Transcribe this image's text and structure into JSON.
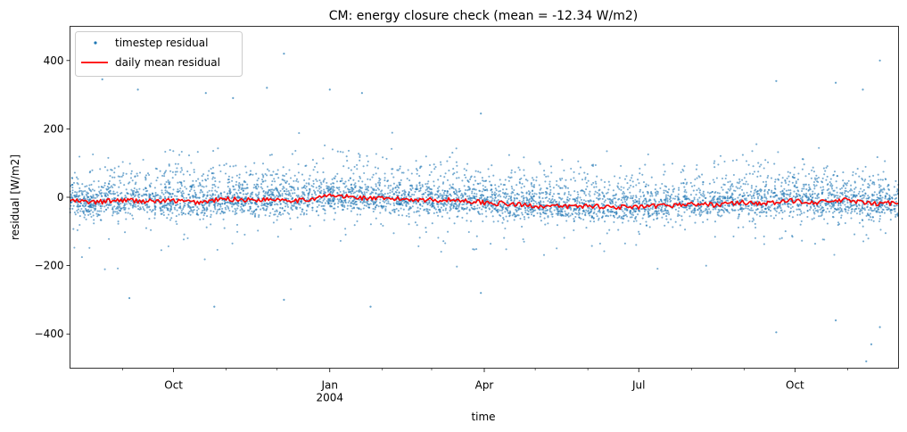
{
  "chart_data": {
    "type": "scatter",
    "title": "CM: energy closure check (mean = -12.34 W/m2)",
    "xlabel": "time",
    "ylabel": "residual [W/m2]",
    "x_range": [
      "2003-08-01",
      "2004-12-01"
    ],
    "ylim": [
      -500,
      500
    ],
    "y_ticks": [
      400,
      200,
      0,
      -200,
      -400
    ],
    "y_tick_labels": [
      "400",
      "200",
      "0",
      "−200",
      "−400"
    ],
    "x_ticks": [
      {
        "date": "2003-10-01",
        "label": "Oct",
        "sublabel": ""
      },
      {
        "date": "2004-01-01",
        "label": "Jan",
        "sublabel": "2004"
      },
      {
        "date": "2004-04-01",
        "label": "Apr",
        "sublabel": ""
      },
      {
        "date": "2004-07-01",
        "label": "Jul",
        "sublabel": ""
      },
      {
        "date": "2004-10-01",
        "label": "Oct",
        "sublabel": ""
      }
    ],
    "x_minor_ticks": [
      "2003-09-01",
      "2003-11-01",
      "2003-12-01",
      "2004-02-01",
      "2004-03-01",
      "2004-05-01",
      "2004-06-01",
      "2004-08-01",
      "2004-09-01",
      "2004-11-01"
    ],
    "grid": false,
    "legend_position": "top-left",
    "series": [
      {
        "name": "timestep residual",
        "kind": "points",
        "color": "#1f77b4",
        "bulk_mean_approx": -30,
        "outliers": [
          {
            "x": "2003-08-20",
            "y": 345
          },
          {
            "x": "2003-09-10",
            "y": 315
          },
          {
            "x": "2003-10-20",
            "y": 305
          },
          {
            "x": "2003-11-05",
            "y": 290
          },
          {
            "x": "2003-12-05",
            "y": 420
          },
          {
            "x": "2003-11-25",
            "y": 320
          },
          {
            "x": "2004-01-01",
            "y": 315
          },
          {
            "x": "2004-01-20",
            "y": 305
          },
          {
            "x": "2004-03-30",
            "y": 245
          },
          {
            "x": "2004-09-20",
            "y": 340
          },
          {
            "x": "2004-10-25",
            "y": 335
          },
          {
            "x": "2004-11-10",
            "y": 315
          },
          {
            "x": "2004-11-20",
            "y": 400
          },
          {
            "x": "2003-09-05",
            "y": -295
          },
          {
            "x": "2003-10-25",
            "y": -320
          },
          {
            "x": "2003-12-05",
            "y": -300
          },
          {
            "x": "2004-01-25",
            "y": -320
          },
          {
            "x": "2004-03-30",
            "y": -280
          },
          {
            "x": "2004-09-20",
            "y": -395
          },
          {
            "x": "2004-10-25",
            "y": -360
          },
          {
            "x": "2004-11-15",
            "y": -430
          },
          {
            "x": "2004-11-12",
            "y": -480
          },
          {
            "x": "2004-11-20",
            "y": -380
          }
        ]
      },
      {
        "name": "daily mean residual",
        "kind": "line",
        "color": "#ff0000",
        "x": [
          "2003-08-01",
          "2003-08-15",
          "2003-09-01",
          "2003-09-15",
          "2003-10-01",
          "2003-10-15",
          "2003-11-01",
          "2003-11-15",
          "2003-12-01",
          "2003-12-15",
          "2004-01-01",
          "2004-01-15",
          "2004-02-01",
          "2004-02-15",
          "2004-03-01",
          "2004-03-15",
          "2004-04-01",
          "2004-04-15",
          "2004-05-01",
          "2004-05-15",
          "2004-06-01",
          "2004-06-15",
          "2004-07-01",
          "2004-07-15",
          "2004-08-01",
          "2004-08-15",
          "2004-09-01",
          "2004-09-15",
          "2004-10-01",
          "2004-10-15",
          "2004-11-01",
          "2004-11-15",
          "2004-12-01"
        ],
        "y": [
          -10,
          -15,
          -8,
          -12,
          -10,
          -15,
          -5,
          -8,
          -5,
          -10,
          5,
          0,
          -5,
          -5,
          -8,
          -8,
          -15,
          -20,
          -25,
          -28,
          -25,
          -28,
          -30,
          -25,
          -20,
          -22,
          -15,
          -18,
          -10,
          -15,
          -8,
          -20,
          -15
        ]
      }
    ]
  }
}
